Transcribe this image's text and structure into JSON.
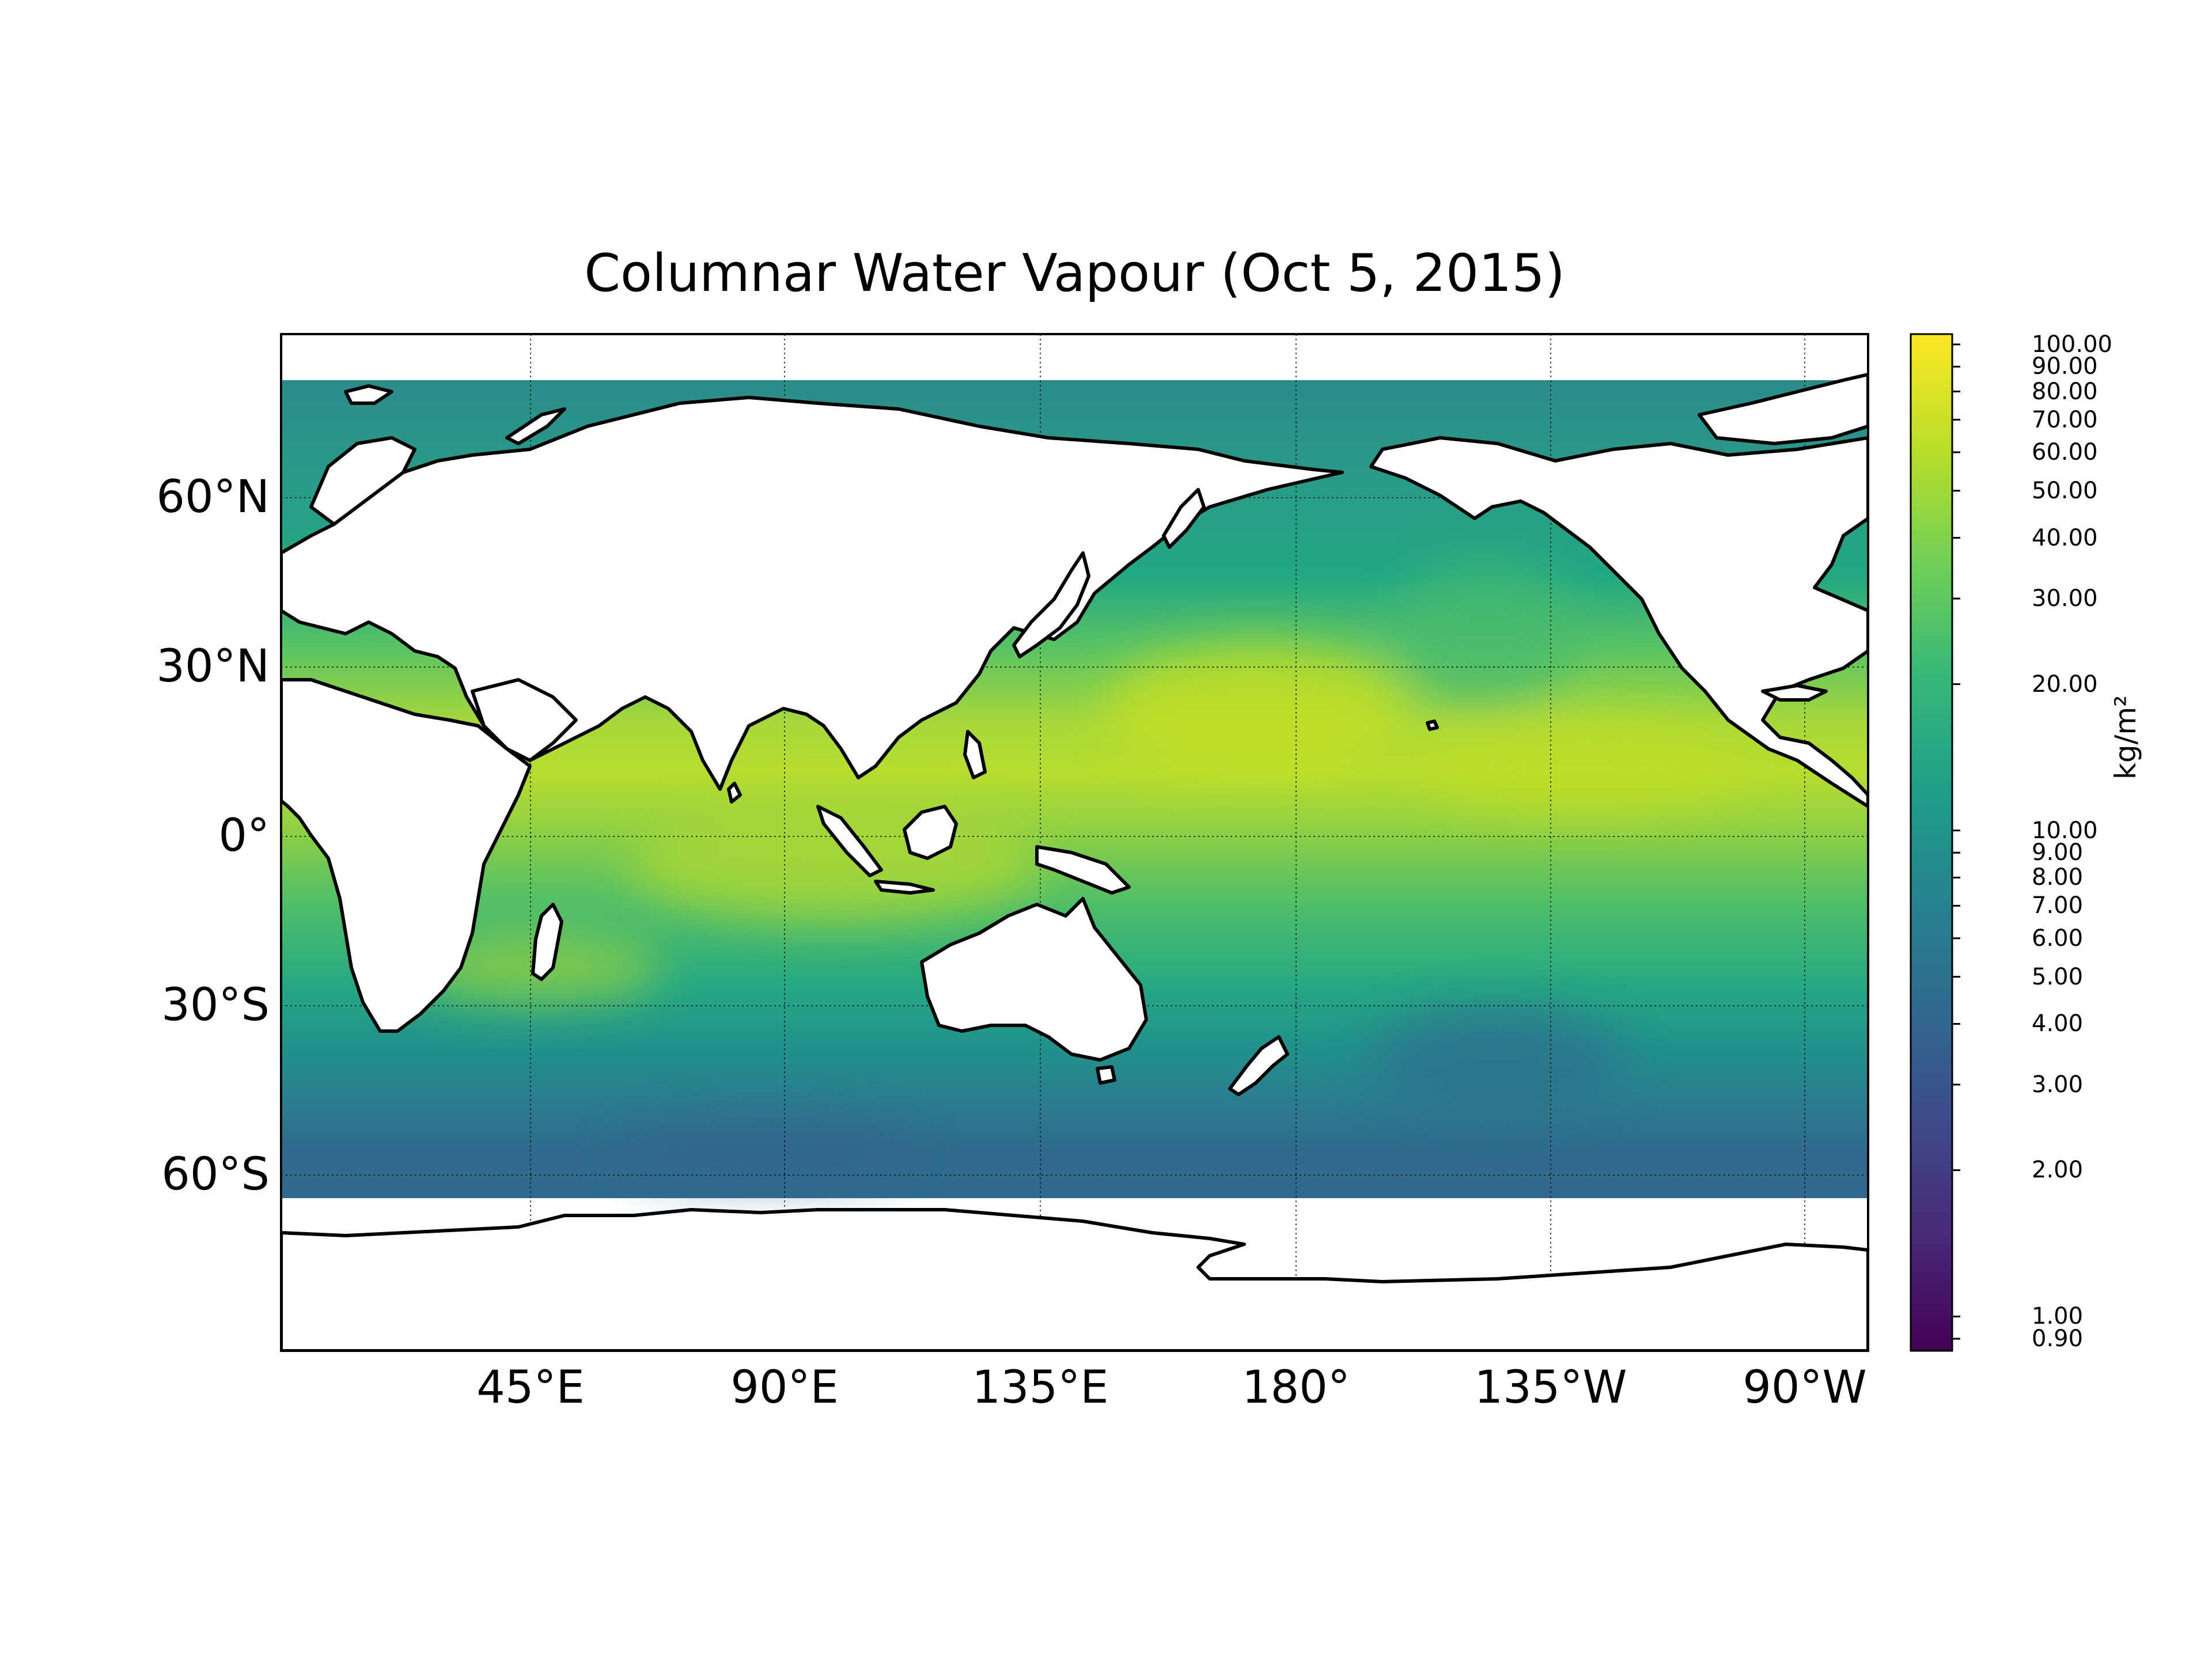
{
  "title": "Columnar Water Vapour (Oct 5, 2015)",
  "map": {
    "projection": "PlateCarree",
    "central_longitude": 180,
    "extent": {
      "lon": [
        0,
        270
      ],
      "lat": [
        -90,
        90
      ]
    },
    "grid": true,
    "gridline_style": "dotted",
    "lat_ticks": [
      {
        "value": 60,
        "label": "60°N"
      },
      {
        "value": 30,
        "label": "30°N"
      },
      {
        "value": 0,
        "label": "0°"
      },
      {
        "value": -30,
        "label": "30°S"
      },
      {
        "value": -60,
        "label": "60°S"
      }
    ],
    "lon_ticks": [
      {
        "value": 45,
        "label": "45°E"
      },
      {
        "value": 90,
        "label": "90°E"
      },
      {
        "value": 135,
        "label": "135°E"
      },
      {
        "value": 180,
        "label": "180°"
      },
      {
        "value": 225,
        "label": "135°W"
      },
      {
        "value": 270,
        "label": "90°W"
      }
    ],
    "coastline_color": "#000000",
    "land_color": "#ffffff",
    "field": "columnar water vapour",
    "colormap": "viridis"
  },
  "colorbar": {
    "label": "kg/m²",
    "scale": "log",
    "range": [
      0.85,
      105
    ],
    "ticks": [
      {
        "value": 100,
        "label": "100.00"
      },
      {
        "value": 90,
        "label": "90.00"
      },
      {
        "value": 80,
        "label": "80.00"
      },
      {
        "value": 70,
        "label": "70.00"
      },
      {
        "value": 60,
        "label": "60.00"
      },
      {
        "value": 50,
        "label": "50.00"
      },
      {
        "value": 40,
        "label": "40.00"
      },
      {
        "value": 30,
        "label": "30.00"
      },
      {
        "value": 20,
        "label": "20.00"
      },
      {
        "value": 10,
        "label": "10.00"
      },
      {
        "value": 9,
        "label": "9.00"
      },
      {
        "value": 8,
        "label": "8.00"
      },
      {
        "value": 7,
        "label": "7.00"
      },
      {
        "value": 6,
        "label": "6.00"
      },
      {
        "value": 5,
        "label": "5.00"
      },
      {
        "value": 4,
        "label": "4.00"
      },
      {
        "value": 3,
        "label": "3.00"
      },
      {
        "value": 2,
        "label": "2.00"
      },
      {
        "value": 1,
        "label": "1.00"
      },
      {
        "value": 0.9,
        "label": "0.90"
      }
    ],
    "colors": [
      "#440154",
      "#482878",
      "#3e4989",
      "#31688e",
      "#26828e",
      "#1f9e89",
      "#35b779",
      "#6ece58",
      "#b5de2b",
      "#fde725"
    ]
  }
}
